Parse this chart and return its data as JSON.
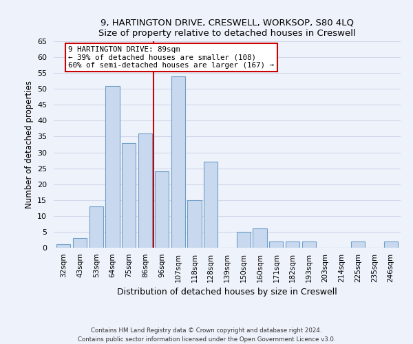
{
  "title1": "9, HARTINGTON DRIVE, CRESWELL, WORKSOP, S80 4LQ",
  "title2": "Size of property relative to detached houses in Creswell",
  "xlabel": "Distribution of detached houses by size in Creswell",
  "ylabel": "Number of detached properties",
  "bar_labels": [
    "32sqm",
    "43sqm",
    "53sqm",
    "64sqm",
    "75sqm",
    "86sqm",
    "96sqm",
    "107sqm",
    "118sqm",
    "128sqm",
    "139sqm",
    "150sqm",
    "160sqm",
    "171sqm",
    "182sqm",
    "193sqm",
    "203sqm",
    "214sqm",
    "225sqm",
    "235sqm",
    "246sqm"
  ],
  "bar_values": [
    1,
    3,
    13,
    51,
    33,
    36,
    24,
    54,
    15,
    27,
    0,
    5,
    6,
    2,
    2,
    2,
    0,
    0,
    2,
    0,
    2
  ],
  "bar_color": "#c8d9ef",
  "bar_edge_color": "#6e9ec8",
  "vline_x": 5.5,
  "vline_color": "#cc0000",
  "annotation_title": "9 HARTINGTON DRIVE: 89sqm",
  "annotation_line1": "← 39% of detached houses are smaller (108)",
  "annotation_line2": "60% of semi-detached houses are larger (167) →",
  "annotation_box_color": "#ffffff",
  "annotation_box_edge": "#cc0000",
  "ylim": [
    0,
    65
  ],
  "yticks": [
    0,
    5,
    10,
    15,
    20,
    25,
    30,
    35,
    40,
    45,
    50,
    55,
    60,
    65
  ],
  "footer1": "Contains HM Land Registry data © Crown copyright and database right 2024.",
  "footer2": "Contains public sector information licensed under the Open Government Licence v3.0.",
  "bg_color": "#eef2fa",
  "grid_color": "#d0d8ea"
}
